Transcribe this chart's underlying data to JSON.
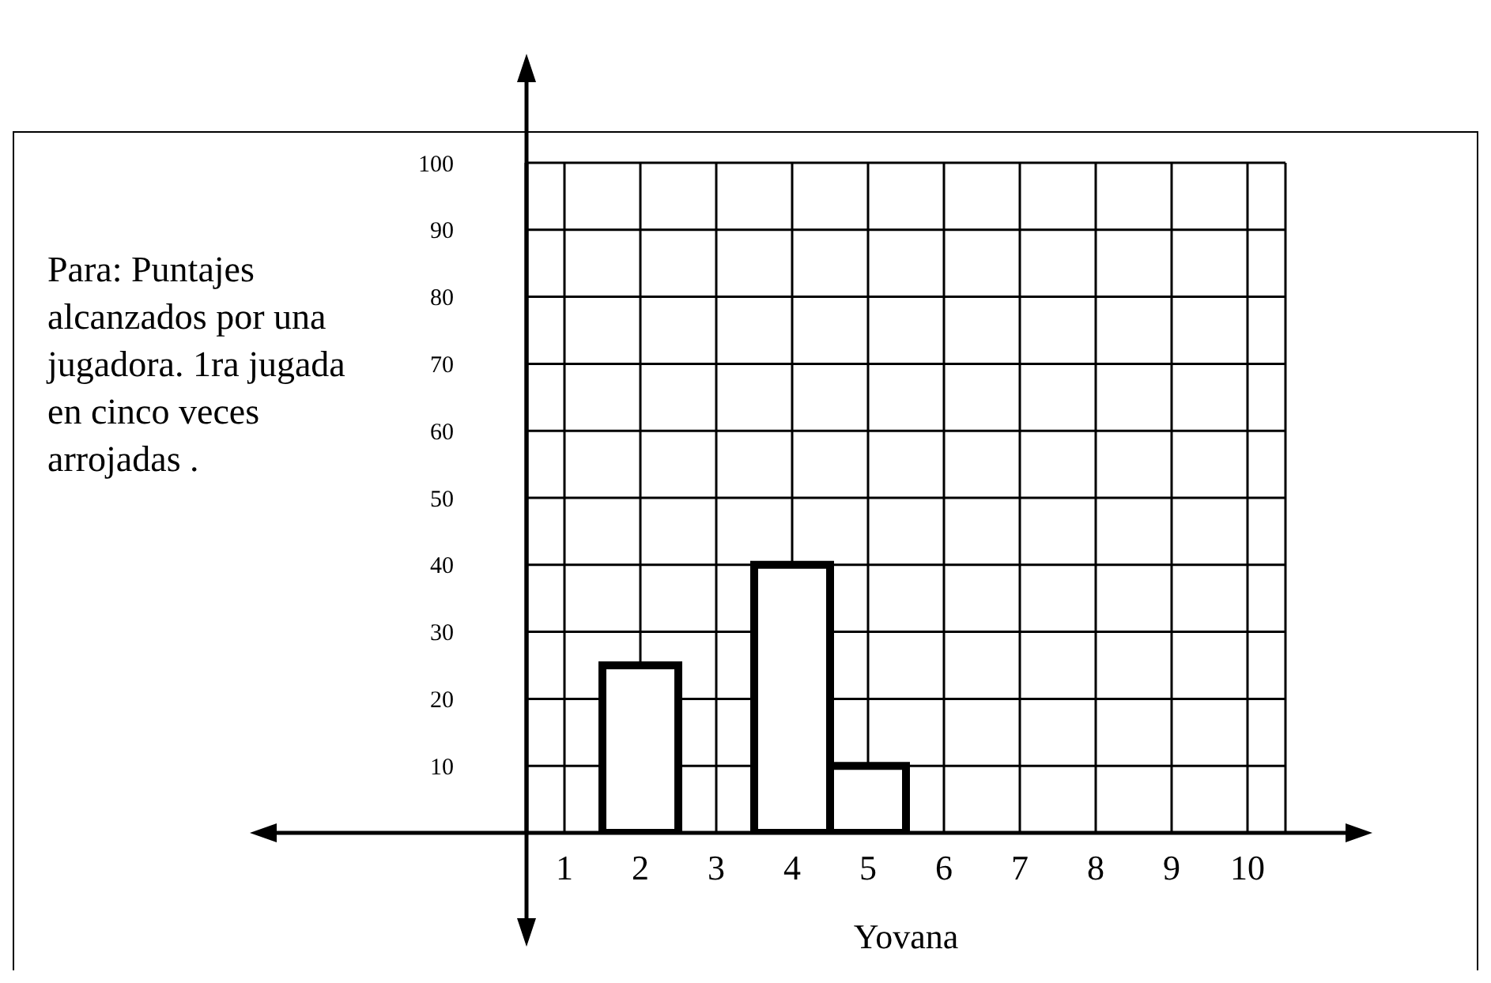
{
  "chart_data": {
    "type": "bar",
    "title": "Para: Puntajes alcanzados por una jugadora. 1ra jugada en cinco veces arrojadas .",
    "xlabel": "Yovana",
    "categories": [
      "1",
      "2",
      "3",
      "4",
      "5",
      "6",
      "7",
      "8",
      "9",
      "10"
    ],
    "values": [
      0,
      25,
      0,
      40,
      10,
      null,
      null,
      null,
      null,
      null
    ],
    "color": "#ffffff",
    "ylim": [
      0,
      100
    ],
    "yticks": [
      10,
      20,
      30,
      40,
      50,
      60,
      70,
      80,
      90,
      100
    ],
    "grid": true
  }
}
